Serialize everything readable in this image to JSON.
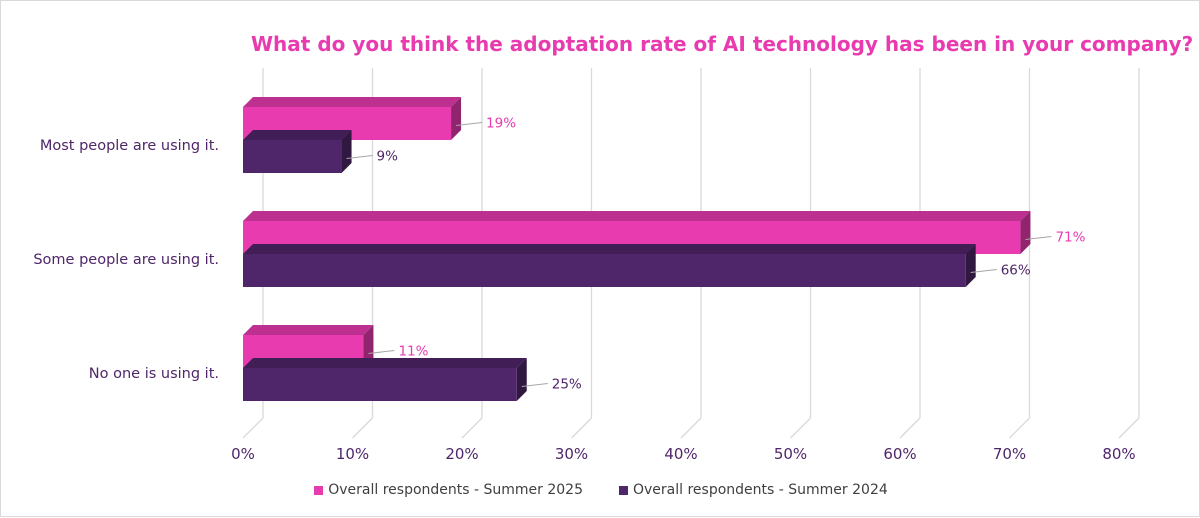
{
  "chart_data": {
    "type": "bar",
    "orientation": "horizontal",
    "style": "3d-clustered",
    "title": "What do you think the adoptation rate of AI technology has been in your company?",
    "categories": [
      "Most people are using it.",
      "Some people are using it.",
      "No one is using it."
    ],
    "series": [
      {
        "name": "Overall respondents - Summer 2025",
        "values": [
          19,
          71,
          11
        ],
        "labels": [
          "19%",
          "71%",
          "11%"
        ],
        "color": "#e83bb0"
      },
      {
        "name": "Overall respondents - Summer 2024",
        "values": [
          9,
          66,
          25
        ],
        "labels": [
          "9%",
          "66%",
          "25%"
        ],
        "color": "#4f2669"
      }
    ],
    "xlim": [
      0,
      80
    ],
    "x_ticks": [
      "0%",
      "10%",
      "20%",
      "30%",
      "40%",
      "50%",
      "60%",
      "70%",
      "80%"
    ],
    "grid": true,
    "legend_position": "bottom"
  }
}
